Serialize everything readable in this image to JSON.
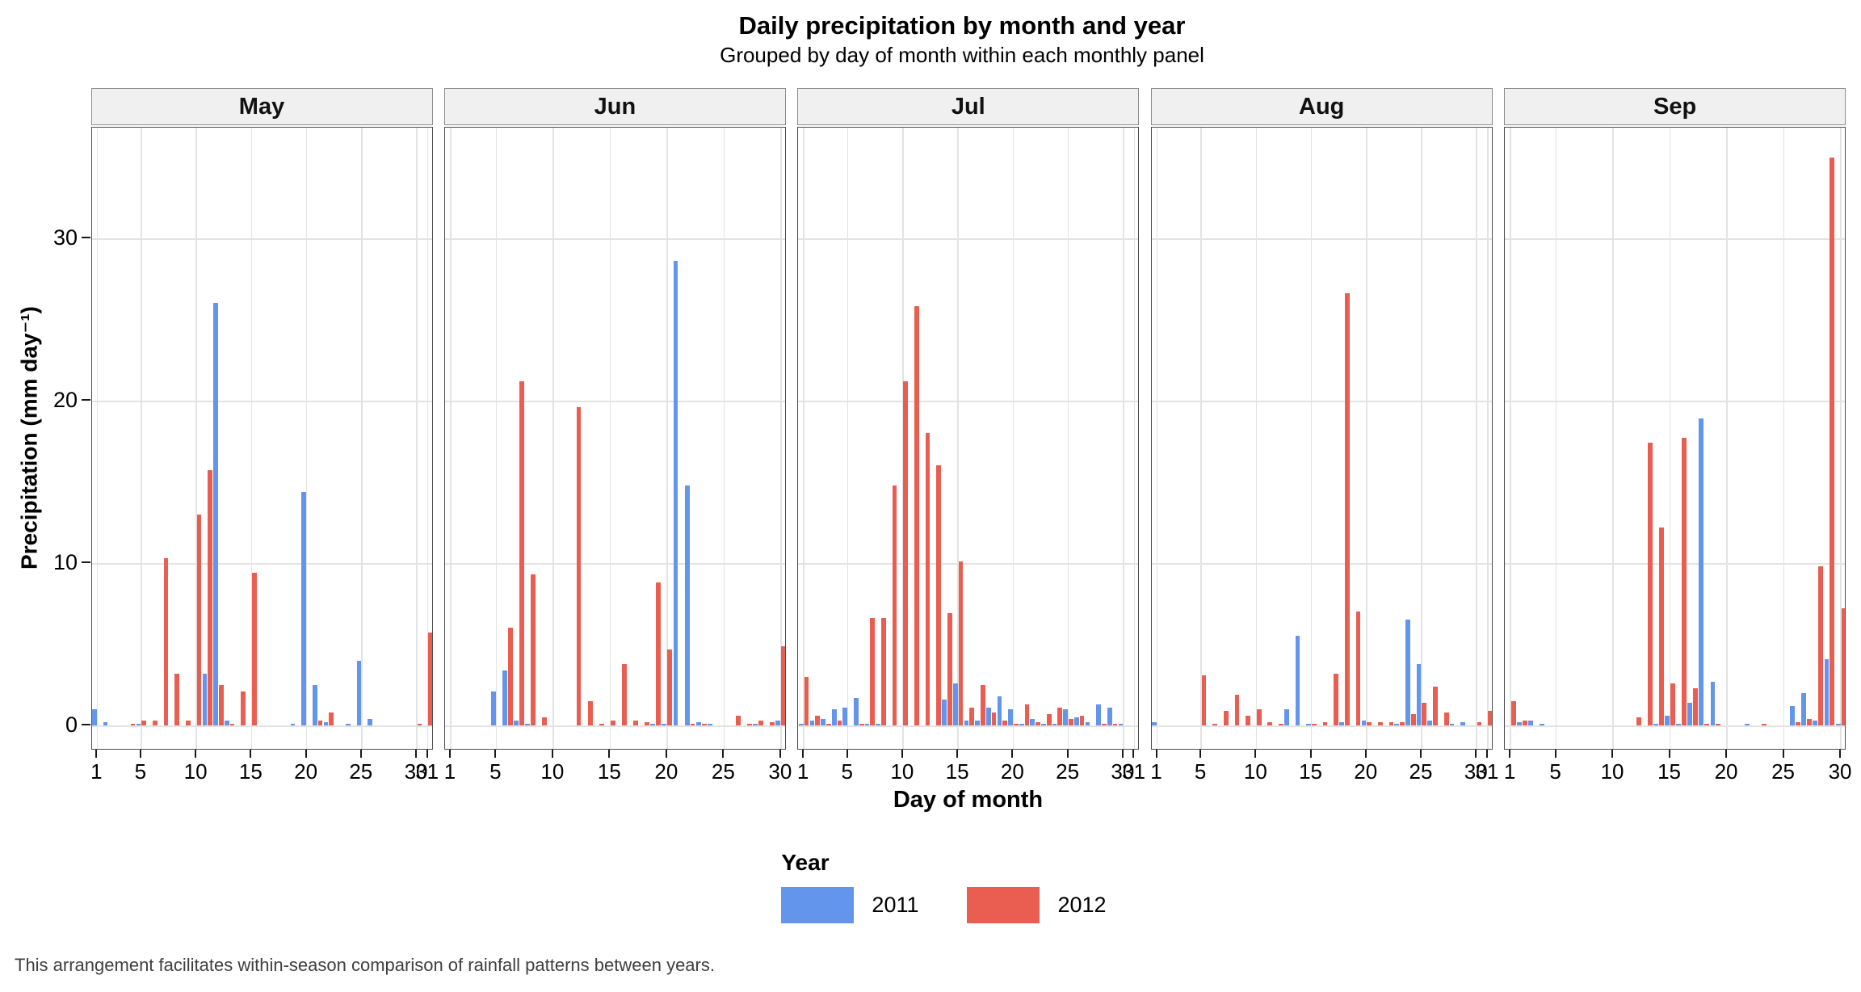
{
  "figure": {
    "title": "Daily precipitation by month and year",
    "subtitle": "Grouped by day of month within each monthly panel",
    "xlabel": "Day of month",
    "ylabel": "Precipitation (mm day⁻¹)",
    "caption": "This arrangement facilitates within-season comparison of rainfall patterns between years."
  },
  "legend": {
    "title": "Year",
    "entries": [
      {
        "label": "2011",
        "color": "#6495ED"
      },
      {
        "label": "2012",
        "color": "#EA5E51"
      }
    ]
  },
  "chart_data": {
    "type": "bar",
    "grouping": "dodged",
    "title": "Daily precipitation by month and year",
    "subtitle": "Grouped by day of month within each monthly panel",
    "xlabel": "Day of month",
    "ylabel": "Precipitation (mm day^-1)",
    "ylim": [
      0,
      37
    ],
    "y_ticks": [
      0,
      10,
      20,
      30
    ],
    "grid": "major-only",
    "legend_position": "bottom-center",
    "series_names": [
      "2011",
      "2012"
    ],
    "series_colors": {
      "2011": "#6495ED",
      "2012": "#EA5E51"
    },
    "panels": [
      {
        "month": "May",
        "days_in_month": 31,
        "tick_days": [
          1,
          5,
          10,
          15,
          20,
          25,
          30,
          31
        ],
        "series": [
          {
            "name": "2011",
            "points": {
              "1": 1.0,
              "2": 0.2,
              "5": 0.1,
              "11": 3.2,
              "12": 26.0,
              "13": 0.3,
              "19": 0.1,
              "20": 14.4,
              "21": 2.5,
              "22": 0.2,
              "24": 0.1,
              "25": 4.0,
              "26": 0.4
            }
          },
          {
            "name": "2012",
            "points": {
              "4": 0.1,
              "5": 0.3,
              "6": 0.3,
              "7": 10.3,
              "8": 3.2,
              "9": 0.3,
              "10": 13.0,
              "11": 15.7,
              "12": 2.5,
              "13": 0.1,
              "14": 2.1,
              "15": 9.4,
              "21": 0.3,
              "22": 0.8,
              "30": 0.1,
              "31": 5.7
            }
          }
        ]
      },
      {
        "month": "Jun",
        "days_in_month": 30,
        "tick_days": [
          1,
          5,
          10,
          15,
          20,
          25,
          30
        ],
        "series": [
          {
            "name": "2011",
            "points": {
              "5": 2.1,
              "6": 3.4,
              "7": 0.3,
              "8": 0.1,
              "19": 0.1,
              "20": 0.1,
              "21": 28.6,
              "22": 14.8,
              "23": 0.2,
              "24": 0.1,
              "28": 0.1,
              "30": 0.3
            }
          },
          {
            "name": "2012",
            "points": {
              "6": 6.0,
              "7": 21.2,
              "8": 9.3,
              "9": 0.5,
              "12": 19.6,
              "13": 1.5,
              "14": 0.1,
              "15": 0.3,
              "16": 3.8,
              "17": 0.3,
              "18": 0.2,
              "19": 8.8,
              "20": 4.7,
              "22": 0.1,
              "23": 0.1,
              "26": 0.6,
              "27": 0.1,
              "28": 0.3,
              "29": 0.2,
              "30": 4.9
            }
          }
        ]
      },
      {
        "month": "Jul",
        "days_in_month": 31,
        "tick_days": [
          1,
          5,
          10,
          15,
          20,
          25,
          30,
          31
        ],
        "series": [
          {
            "name": "2011",
            "points": {
              "1": 0.1,
              "2": 0.3,
              "3": 0.4,
              "4": 1.0,
              "5": 1.1,
              "6": 1.7,
              "7": 0.1,
              "8": 0.1,
              "14": 1.6,
              "15": 2.6,
              "16": 0.3,
              "17": 0.3,
              "18": 1.1,
              "19": 1.8,
              "20": 1.0,
              "21": 0.1,
              "22": 0.4,
              "23": 0.1,
              "24": 0.1,
              "25": 1.0,
              "26": 0.5,
              "27": 0.2,
              "28": 1.3,
              "29": 1.1,
              "30": 0.1
            }
          },
          {
            "name": "2012",
            "points": {
              "1": 3.0,
              "2": 0.6,
              "3": 0.1,
              "4": 0.3,
              "6": 0.1,
              "7": 6.6,
              "8": 6.6,
              "9": 14.8,
              "10": 21.2,
              "11": 25.8,
              "12": 18.0,
              "13": 16.0,
              "14": 6.9,
              "15": 10.1,
              "16": 1.1,
              "17": 2.5,
              "18": 0.8,
              "19": 0.3,
              "20": 0.1,
              "21": 1.3,
              "22": 0.2,
              "23": 0.7,
              "24": 1.1,
              "25": 0.4,
              "26": 0.6,
              "28": 0.1,
              "29": 0.1
            }
          }
        ]
      },
      {
        "month": "Aug",
        "days_in_month": 31,
        "tick_days": [
          1,
          5,
          10,
          15,
          20,
          25,
          30,
          31
        ],
        "series": [
          {
            "name": "2011",
            "points": {
              "1": 0.2,
              "13": 1.0,
              "14": 5.5,
              "15": 0.1,
              "18": 0.2,
              "20": 0.3,
              "23": 0.1,
              "24": 6.5,
              "25": 3.8,
              "26": 0.3,
              "28": 0.1,
              "29": 0.2
            }
          },
          {
            "name": "2012",
            "points": {
              "5": 3.1,
              "6": 0.1,
              "7": 0.9,
              "8": 1.9,
              "9": 0.6,
              "10": 1.0,
              "11": 0.2,
              "12": 0.1,
              "15": 0.1,
              "16": 0.2,
              "17": 3.2,
              "18": 26.6,
              "19": 7.0,
              "20": 0.2,
              "21": 0.2,
              "22": 0.2,
              "23": 0.2,
              "24": 0.7,
              "25": 1.4,
              "26": 2.4,
              "27": 0.8,
              "30": 0.2,
              "31": 0.9
            }
          }
        ]
      },
      {
        "month": "Sep",
        "days_in_month": 30,
        "tick_days": [
          1,
          5,
          10,
          15,
          20,
          25,
          30
        ],
        "series": [
          {
            "name": "2011",
            "points": {
              "2": 0.2,
              "3": 0.3,
              "4": 0.1,
              "14": 0.1,
              "15": 0.6,
              "16": 0.1,
              "17": 1.4,
              "18": 18.9,
              "19": 2.7,
              "22": 0.1,
              "26": 1.2,
              "27": 2.0,
              "28": 0.3,
              "29": 4.1,
              "30": 0.1
            }
          },
          {
            "name": "2012",
            "points": {
              "1": 1.5,
              "2": 0.3,
              "12": 0.5,
              "13": 17.4,
              "14": 12.2,
              "15": 2.6,
              "16": 17.7,
              "17": 2.3,
              "18": 0.1,
              "19": 0.1,
              "23": 0.1,
              "26": 0.2,
              "27": 0.4,
              "28": 9.8,
              "29": 35.0,
              "30": 7.2
            }
          }
        ]
      }
    ]
  }
}
